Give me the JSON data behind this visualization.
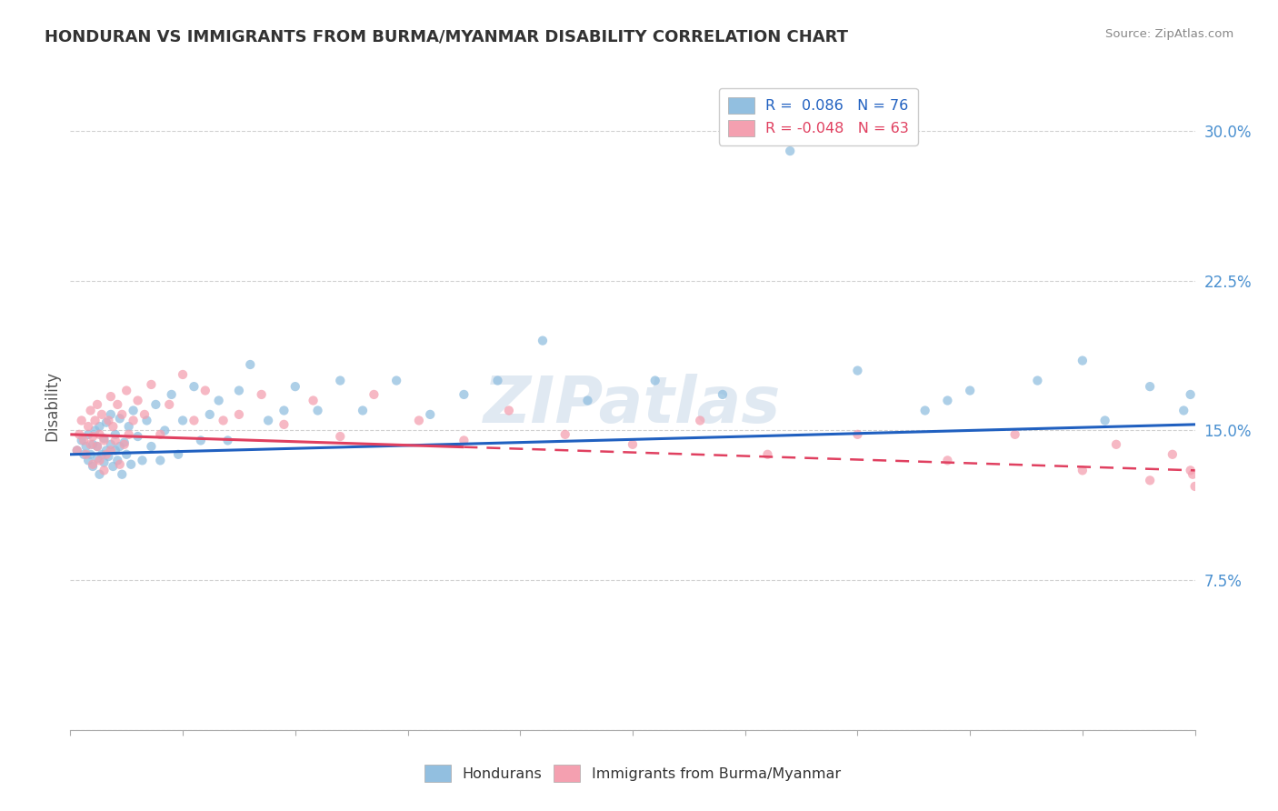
{
  "title": "HONDURAN VS IMMIGRANTS FROM BURMA/MYANMAR DISABILITY CORRELATION CHART",
  "source": "Source: ZipAtlas.com",
  "ylabel": "Disability",
  "yticks": [
    0.0,
    0.075,
    0.15,
    0.225,
    0.3
  ],
  "ytick_labels": [
    "",
    "7.5%",
    "15.0%",
    "22.5%",
    "30.0%"
  ],
  "xmin": 0.0,
  "xmax": 0.5,
  "ymin": 0.0,
  "ymax": 0.325,
  "blue_color": "#92bfe0",
  "pink_color": "#f4a0b0",
  "blue_line_color": "#2060c0",
  "pink_line_color": "#e04060",
  "grid_color": "#cccccc",
  "background_color": "#ffffff",
  "title_color": "#333333",
  "watermark": "ZIPatlas",
  "legend_blue_label": "R =  0.086   N = 76",
  "legend_pink_label": "R = -0.048   N = 63",
  "legend_blue_color": "#92bfe0",
  "legend_pink_color": "#f4a0b0",
  "legend_text_blue": "#2060c0",
  "legend_text_pink": "#e04060",
  "blue_line_start_y": 0.138,
  "blue_line_end_y": 0.153,
  "pink_line_start_y": 0.148,
  "pink_line_end_y": 0.13,
  "blue_scatter_x": [
    0.003,
    0.005,
    0.006,
    0.007,
    0.008,
    0.008,
    0.009,
    0.01,
    0.01,
    0.011,
    0.012,
    0.012,
    0.013,
    0.013,
    0.014,
    0.015,
    0.015,
    0.016,
    0.016,
    0.017,
    0.018,
    0.018,
    0.019,
    0.02,
    0.02,
    0.021,
    0.022,
    0.022,
    0.023,
    0.024,
    0.025,
    0.026,
    0.027,
    0.028,
    0.03,
    0.032,
    0.034,
    0.036,
    0.038,
    0.04,
    0.042,
    0.045,
    0.048,
    0.05,
    0.055,
    0.058,
    0.062,
    0.066,
    0.07,
    0.075,
    0.08,
    0.088,
    0.095,
    0.1,
    0.11,
    0.12,
    0.13,
    0.145,
    0.16,
    0.175,
    0.19,
    0.21,
    0.23,
    0.26,
    0.29,
    0.32,
    0.35,
    0.38,
    0.39,
    0.4,
    0.43,
    0.45,
    0.46,
    0.48,
    0.495,
    0.498
  ],
  "blue_scatter_y": [
    0.14,
    0.145,
    0.138,
    0.142,
    0.135,
    0.148,
    0.138,
    0.132,
    0.143,
    0.15,
    0.136,
    0.142,
    0.128,
    0.152,
    0.138,
    0.134,
    0.146,
    0.14,
    0.154,
    0.137,
    0.143,
    0.158,
    0.132,
    0.14,
    0.148,
    0.135,
    0.142,
    0.156,
    0.128,
    0.144,
    0.138,
    0.152,
    0.133,
    0.16,
    0.147,
    0.135,
    0.155,
    0.142,
    0.163,
    0.135,
    0.15,
    0.168,
    0.138,
    0.155,
    0.172,
    0.145,
    0.158,
    0.165,
    0.145,
    0.17,
    0.183,
    0.155,
    0.16,
    0.172,
    0.16,
    0.175,
    0.16,
    0.175,
    0.158,
    0.168,
    0.175,
    0.195,
    0.165,
    0.175,
    0.168,
    0.29,
    0.18,
    0.16,
    0.165,
    0.17,
    0.175,
    0.185,
    0.155,
    0.172,
    0.16,
    0.168
  ],
  "pink_scatter_x": [
    0.003,
    0.004,
    0.005,
    0.006,
    0.007,
    0.008,
    0.009,
    0.009,
    0.01,
    0.01,
    0.011,
    0.012,
    0.012,
    0.013,
    0.013,
    0.014,
    0.015,
    0.015,
    0.016,
    0.017,
    0.018,
    0.018,
    0.019,
    0.02,
    0.021,
    0.022,
    0.023,
    0.024,
    0.025,
    0.026,
    0.028,
    0.03,
    0.033,
    0.036,
    0.04,
    0.044,
    0.05,
    0.055,
    0.06,
    0.068,
    0.075,
    0.085,
    0.095,
    0.108,
    0.12,
    0.135,
    0.155,
    0.175,
    0.195,
    0.22,
    0.25,
    0.28,
    0.31,
    0.35,
    0.39,
    0.42,
    0.45,
    0.465,
    0.48,
    0.49,
    0.498,
    0.499,
    0.5
  ],
  "pink_scatter_y": [
    0.14,
    0.148,
    0.155,
    0.145,
    0.138,
    0.152,
    0.143,
    0.16,
    0.133,
    0.147,
    0.155,
    0.142,
    0.163,
    0.135,
    0.148,
    0.158,
    0.13,
    0.145,
    0.138,
    0.155,
    0.167,
    0.14,
    0.152,
    0.145,
    0.163,
    0.133,
    0.158,
    0.143,
    0.17,
    0.148,
    0.155,
    0.165,
    0.158,
    0.173,
    0.148,
    0.163,
    0.178,
    0.155,
    0.17,
    0.155,
    0.158,
    0.168,
    0.153,
    0.165,
    0.147,
    0.168,
    0.155,
    0.145,
    0.16,
    0.148,
    0.143,
    0.155,
    0.138,
    0.148,
    0.135,
    0.148,
    0.13,
    0.143,
    0.125,
    0.138,
    0.13,
    0.128,
    0.122
  ]
}
